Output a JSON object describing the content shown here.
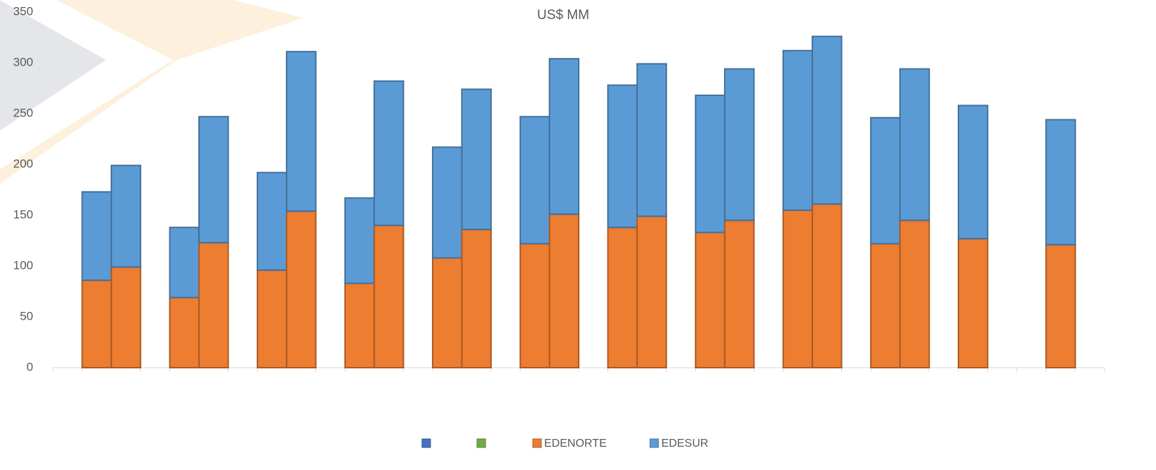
{
  "chart_data": {
    "type": "stacked-bar",
    "title": "US$ MM",
    "categories": [
      null,
      null,
      null,
      null,
      null,
      null,
      null,
      null,
      null,
      null,
      null,
      null,
      null,
      null,
      null,
      null,
      null,
      null,
      null,
      null,
      null,
      null,
      null,
      null,
      null,
      null,
      null,
      null,
      null,
      null,
      null,
      null,
      null,
      null,
      null,
      null
    ],
    "series": [
      {
        "name": null,
        "color": "#4472c4",
        "values": [
          null,
          null,
          null,
          null,
          null,
          null,
          null,
          null,
          null,
          null,
          null,
          null,
          null,
          null,
          null,
          null,
          null,
          null,
          null,
          null,
          null,
          null,
          null,
          null,
          null,
          null,
          null,
          null,
          null,
          null,
          null,
          null,
          null,
          null,
          null,
          null
        ]
      },
      {
        "name": null,
        "color": "#70ad47",
        "values": [
          null,
          null,
          null,
          null,
          null,
          null,
          null,
          null,
          null,
          null,
          null,
          null,
          null,
          null,
          null,
          null,
          null,
          null,
          null,
          null,
          null,
          null,
          null,
          null,
          null,
          null,
          null,
          null,
          null,
          null,
          null,
          null,
          null,
          null,
          null,
          null
        ]
      },
      {
        "name": "EDENORTE",
        "color": "#ed7d31",
        "values": [
          null,
          86,
          99,
          null,
          69,
          123,
          null,
          96,
          154,
          null,
          83,
          140,
          null,
          108,
          136,
          null,
          122,
          151,
          null,
          138,
          149,
          null,
          133,
          145,
          null,
          155,
          161,
          null,
          122,
          145,
          null,
          127,
          null,
          null,
          121,
          null
        ]
      },
      {
        "name": "EDESUR",
        "color": "#5b9bd5",
        "values": [
          null,
          87,
          100,
          null,
          69,
          124,
          null,
          96,
          157,
          null,
          84,
          142,
          null,
          109,
          138,
          null,
          125,
          153,
          null,
          140,
          150,
          null,
          135,
          149,
          null,
          157,
          165,
          null,
          124,
          149,
          null,
          131,
          null,
          null,
          123,
          null
        ]
      }
    ],
    "ylim": [
      0,
      350
    ],
    "yticks": [
      0,
      50,
      100,
      150,
      200,
      250,
      300,
      350
    ],
    "grid": false
  }
}
